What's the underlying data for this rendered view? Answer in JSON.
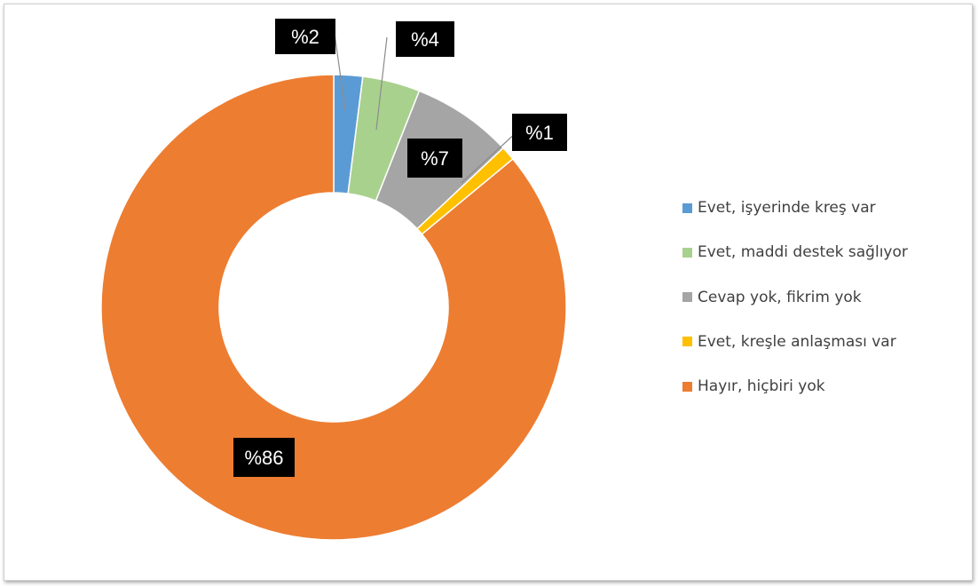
{
  "chart_data": {
    "type": "pie",
    "variant": "donut",
    "title": "",
    "series": [
      {
        "name": "Evet, işyerinde kreş var",
        "value": 2,
        "label": "%2",
        "color": "#5b9bd5"
      },
      {
        "name": "Evet, maddi destek sağlıyor",
        "value": 4,
        "label": "%4",
        "color": "#a9d18e"
      },
      {
        "name": "Cevap yok, fikrim yok",
        "value": 7,
        "label": "%7",
        "color": "#a5a5a5"
      },
      {
        "name": "Evet, kreşle anlaşması var",
        "value": 1,
        "label": "%1",
        "color": "#ffc000"
      },
      {
        "name": "Hayır, hiçbiri yok",
        "value": 86,
        "label": "%86",
        "color": "#ed7d31"
      }
    ],
    "legend_position": "right",
    "data_label_style": "white text on black boxes"
  }
}
